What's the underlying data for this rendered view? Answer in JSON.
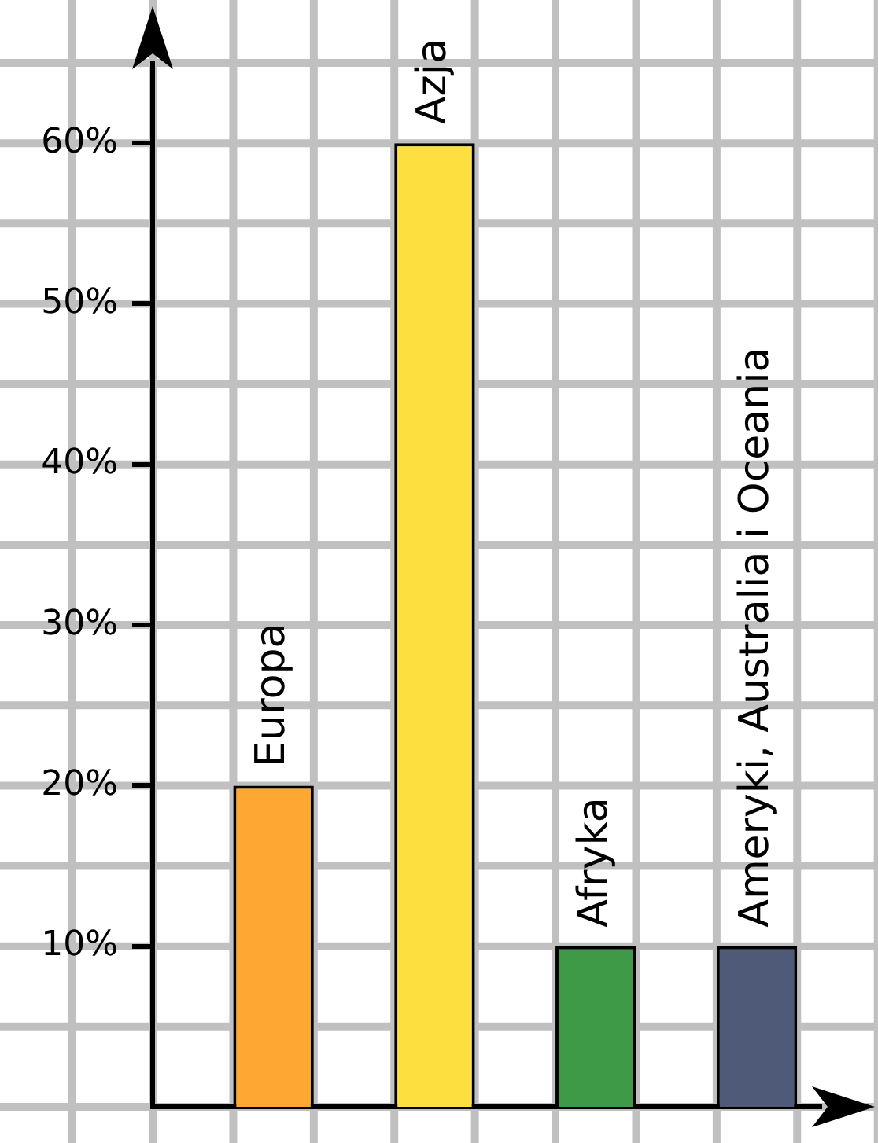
{
  "chart_data": {
    "type": "bar",
    "categories": [
      "Europa",
      "Azja",
      "Afryka",
      "Ameryki, Australia i Oceania"
    ],
    "values": [
      20,
      60,
      10,
      10
    ],
    "colors": [
      "#ffa733",
      "#fde040",
      "#3f9a48",
      "#4f5a78"
    ],
    "ylim": [
      0,
      65
    ],
    "yticks": [
      {
        "value": 10,
        "label": "10%"
      },
      {
        "value": 20,
        "label": "20%"
      },
      {
        "value": 30,
        "label": "30%"
      },
      {
        "value": 40,
        "label": "40%"
      },
      {
        "value": 50,
        "label": "50%"
      },
      {
        "value": 60,
        "label": "60%"
      }
    ],
    "grid": true,
    "tick_labels": "y"
  }
}
